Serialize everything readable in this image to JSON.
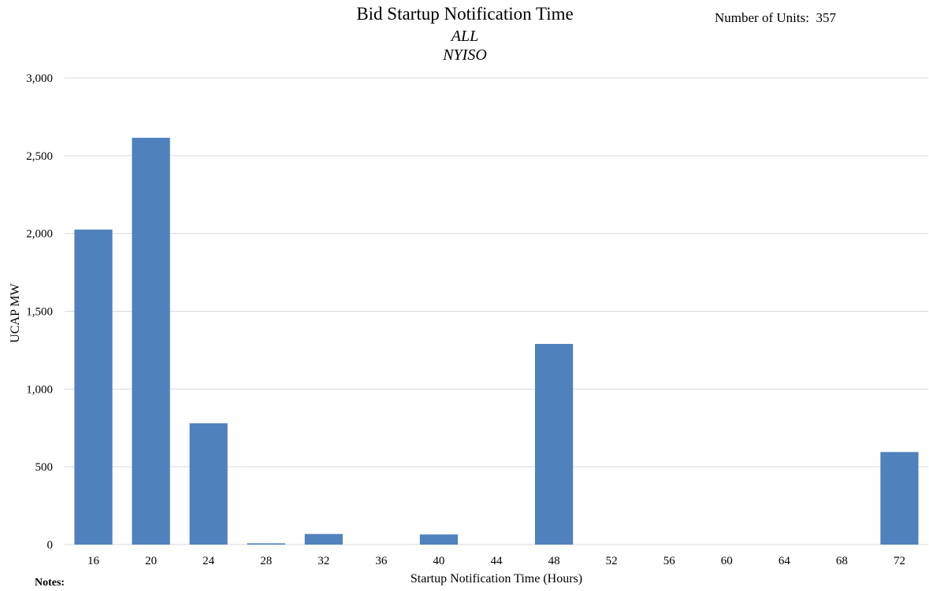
{
  "header": {
    "title": "Bid Startup Notification Time",
    "subtitle1": "ALL",
    "subtitle2": "NYISO",
    "units_label": "Number of Units:",
    "units_value": "357"
  },
  "footer": {
    "notes_label": "Notes:"
  },
  "chart_data": {
    "type": "bar",
    "title": "Bid Startup Notification Time",
    "xlabel": "Startup Notification Time (Hours)",
    "ylabel": "UCAP MW",
    "categories": [
      "16",
      "20",
      "24",
      "28",
      "32",
      "36",
      "40",
      "44",
      "48",
      "52",
      "56",
      "60",
      "64",
      "68",
      "72"
    ],
    "values": [
      2025,
      2615,
      780,
      8,
      68,
      0,
      65,
      0,
      1290,
      0,
      0,
      0,
      0,
      0,
      595
    ],
    "ylim": [
      0,
      3000
    ],
    "yticks": [
      0,
      500,
      1000,
      1500,
      2000,
      2500,
      3000
    ],
    "ytick_labels": [
      "0",
      "500",
      "1,000",
      "1,500",
      "2,000",
      "2,500",
      "3,000"
    ],
    "grid": true,
    "bar_color": "#4f81bd",
    "grid_color": "#d9d9d9"
  }
}
